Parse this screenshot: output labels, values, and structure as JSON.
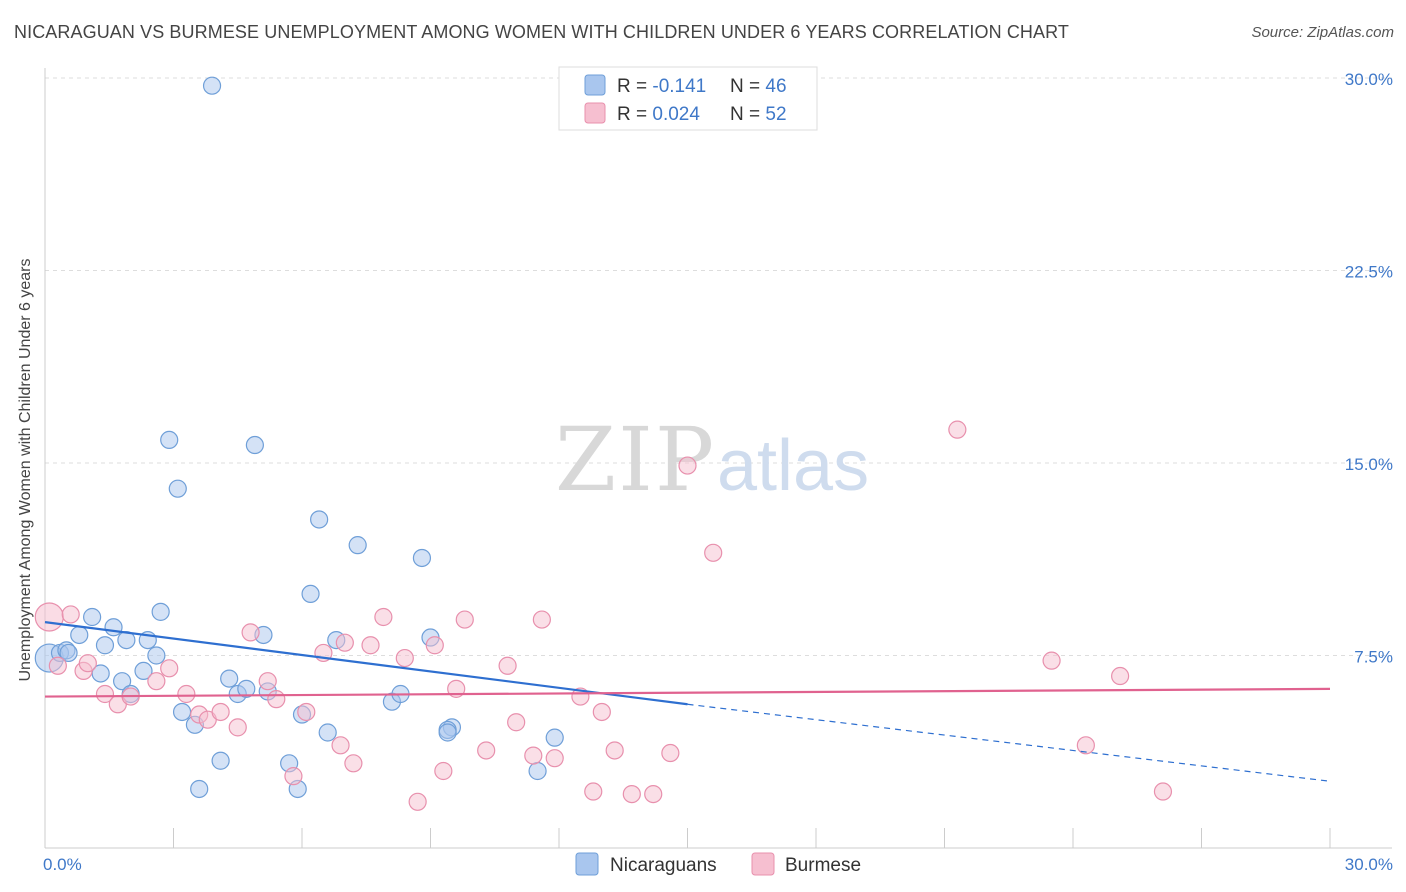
{
  "header": {
    "title": "NICARAGUAN VS BURMESE UNEMPLOYMENT AMONG WOMEN WITH CHILDREN UNDER 6 YEARS CORRELATION CHART",
    "source": "Source: ZipAtlas.com"
  },
  "watermark": {
    "zip": "ZIP",
    "atlas": "atlas"
  },
  "colors": {
    "blue_fill": "#a9c6ee",
    "blue_stroke": "#6f9fd8",
    "blue_line": "#2e6fd0",
    "pink_fill": "#f6bfd0",
    "pink_stroke": "#e890ad",
    "pink_line": "#e0628f",
    "tick_text": "#3f78c8",
    "grid": "#dddddd",
    "axis": "#cccccc"
  },
  "legend": {
    "rows": [
      {
        "r_label": "R = ",
        "r_value": "-0.141",
        "n_label": "N = ",
        "n_value": "46"
      },
      {
        "r_label": "R = ",
        "r_value": "0.024",
        "n_label": "N = ",
        "n_value": "52"
      }
    ]
  },
  "bottom_legend": [
    "Nicaraguans",
    "Burmese"
  ],
  "chart_data": {
    "type": "scatter",
    "title": "NICARAGUAN VS BURMESE UNEMPLOYMENT AMONG WOMEN WITH CHILDREN UNDER 6 YEARS CORRELATION CHART",
    "xlabel": "",
    "ylabel": "Unemployment Among Women with Children Under 6 years",
    "xlim": [
      0,
      30
    ],
    "ylim": [
      0,
      30
    ],
    "x_tick_labels": [
      "0.0%",
      "30.0%"
    ],
    "y_ticks": [
      7.5,
      15,
      22.5,
      30
    ],
    "y_tick_labels": [
      "7.5%",
      "15.0%",
      "22.5%",
      "30.0%"
    ],
    "grid": "horizontal dashed",
    "legend_position": "top-center",
    "series": [
      {
        "name": "Nicaraguans",
        "color": "#a9c6ee",
        "points": [
          [
            0.1,
            7.4
          ],
          [
            0.35,
            7.6
          ],
          [
            0.5,
            7.7
          ],
          [
            0.55,
            7.6
          ],
          [
            0.8,
            8.3
          ],
          [
            1.1,
            9.0
          ],
          [
            1.3,
            6.8
          ],
          [
            1.4,
            7.9
          ],
          [
            1.6,
            8.6
          ],
          [
            1.8,
            6.5
          ],
          [
            1.9,
            8.1
          ],
          [
            2.0,
            6.0
          ],
          [
            2.3,
            6.9
          ],
          [
            2.4,
            8.1
          ],
          [
            2.6,
            7.5
          ],
          [
            2.7,
            9.2
          ],
          [
            2.9,
            15.9
          ],
          [
            3.1,
            14.0
          ],
          [
            3.2,
            5.3
          ],
          [
            3.5,
            4.8
          ],
          [
            3.6,
            2.3
          ],
          [
            3.9,
            29.7
          ],
          [
            4.1,
            3.4
          ],
          [
            4.3,
            6.6
          ],
          [
            4.5,
            6.0
          ],
          [
            4.7,
            6.2
          ],
          [
            4.9,
            15.7
          ],
          [
            5.1,
            8.3
          ],
          [
            5.2,
            6.1
          ],
          [
            5.7,
            3.3
          ],
          [
            5.9,
            2.3
          ],
          [
            6.0,
            5.2
          ],
          [
            6.2,
            9.9
          ],
          [
            6.4,
            12.8
          ],
          [
            6.6,
            4.5
          ],
          [
            6.8,
            8.1
          ],
          [
            7.3,
            11.8
          ],
          [
            8.1,
            5.7
          ],
          [
            8.3,
            6.0
          ],
          [
            8.8,
            11.3
          ],
          [
            9.0,
            8.2
          ],
          [
            9.5,
            4.7
          ],
          [
            9.4,
            4.6
          ],
          [
            9.4,
            4.5
          ],
          [
            11.5,
            3.0
          ],
          [
            11.9,
            4.3
          ]
        ]
      },
      {
        "name": "Burmese",
        "color": "#f6bfd0",
        "points": [
          [
            0.1,
            9.0
          ],
          [
            0.3,
            7.1
          ],
          [
            0.9,
            6.9
          ],
          [
            1.0,
            7.2
          ],
          [
            1.4,
            6.0
          ],
          [
            1.7,
            5.6
          ],
          [
            2.0,
            5.9
          ],
          [
            2.6,
            6.5
          ],
          [
            2.9,
            7.0
          ],
          [
            3.3,
            6.0
          ],
          [
            3.6,
            5.2
          ],
          [
            3.8,
            5.0
          ],
          [
            4.1,
            5.3
          ],
          [
            4.5,
            4.7
          ],
          [
            4.8,
            8.4
          ],
          [
            5.2,
            6.5
          ],
          [
            5.4,
            5.8
          ],
          [
            5.8,
            2.8
          ],
          [
            6.1,
            5.3
          ],
          [
            6.5,
            7.6
          ],
          [
            6.9,
            4.0
          ],
          [
            7.0,
            8.0
          ],
          [
            7.2,
            3.3
          ],
          [
            7.6,
            7.9
          ],
          [
            7.9,
            9.0
          ],
          [
            8.4,
            7.4
          ],
          [
            8.7,
            1.8
          ],
          [
            9.1,
            7.9
          ],
          [
            9.3,
            3.0
          ],
          [
            9.6,
            6.2
          ],
          [
            9.8,
            8.9
          ],
          [
            10.3,
            3.8
          ],
          [
            10.8,
            7.1
          ],
          [
            11.0,
            4.9
          ],
          [
            11.4,
            3.6
          ],
          [
            11.6,
            8.9
          ],
          [
            11.9,
            3.5
          ],
          [
            12.5,
            5.9
          ],
          [
            12.8,
            2.2
          ],
          [
            13.0,
            5.3
          ],
          [
            13.3,
            3.8
          ],
          [
            13.7,
            2.1
          ],
          [
            14.2,
            2.1
          ],
          [
            14.6,
            3.7
          ],
          [
            15.0,
            14.9
          ],
          [
            15.6,
            11.5
          ],
          [
            21.3,
            16.3
          ],
          [
            23.5,
            7.3
          ],
          [
            24.3,
            4.0
          ],
          [
            25.1,
            6.7
          ],
          [
            26.1,
            2.2
          ],
          [
            0.6,
            9.1
          ]
        ]
      }
    ],
    "trendlines": [
      {
        "series": "Nicaraguans",
        "x0": 0,
        "y0": 8.8,
        "x1": 15.0,
        "y1": 5.6,
        "dashed_to_x": 30,
        "dashed_to_y": 2.6
      },
      {
        "series": "Burmese",
        "x0": 0,
        "y0": 5.9,
        "x1": 30,
        "y1": 6.2
      }
    ]
  }
}
